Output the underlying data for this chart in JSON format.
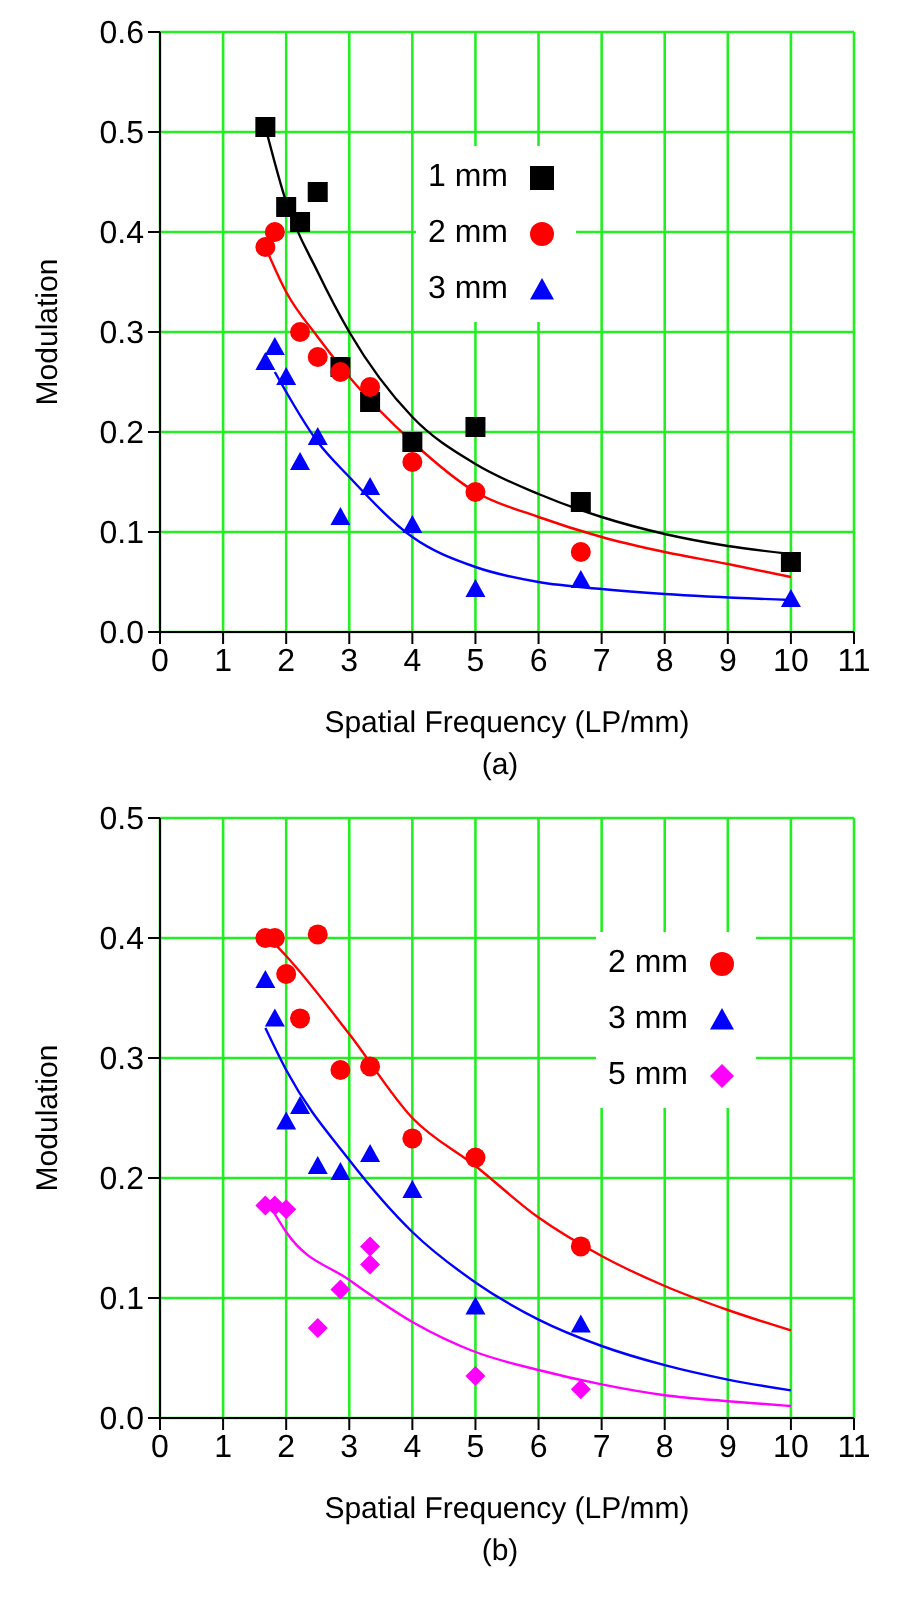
{
  "chart_data": [
    {
      "type": "scatter",
      "xlabel": "Spatial Frequency (LP/mm)",
      "ylabel": "Modulation",
      "annotations": [
        "(a)"
      ],
      "xlim": [
        0,
        11
      ],
      "xticks": [
        0,
        1,
        2,
        3,
        4,
        5,
        6,
        7,
        8,
        9,
        10,
        11
      ],
      "ylim": [
        0,
        0.6
      ],
      "yticks": [
        {
          "value": 0,
          "label": "0.0"
        },
        {
          "value": 0.1,
          "label": "0.1"
        },
        {
          "value": 0.2,
          "label": "0.2"
        },
        {
          "value": 0.3,
          "label": "0.3"
        },
        {
          "value": 0.4,
          "label": "0.4"
        },
        {
          "value": 0.5,
          "label": "0.5"
        },
        {
          "value": 0.6,
          "label": "0.6"
        }
      ],
      "grid": true,
      "legend": "top",
      "series": [
        {
          "name": "1 mm",
          "color": "#000000",
          "marker": "square",
          "x": [
            1.67,
            2,
            2.22,
            2.5,
            2.86,
            3.33,
            4,
            5,
            6.67,
            10
          ],
          "values": [
            0.505,
            0.425,
            0.41,
            0.44,
            0.265,
            0.23,
            0.19,
            0.205,
            0.13,
            0.07
          ]
        },
        {
          "name": "2 mm",
          "color": "#ff0000",
          "marker": "circle",
          "x": [
            1.67,
            1.82,
            2.22,
            2.5,
            2.86,
            3.33,
            4,
            5,
            6.67
          ],
          "values": [
            0.385,
            0.4,
            0.3,
            0.275,
            0.26,
            0.245,
            0.17,
            0.14,
            0.08
          ]
        },
        {
          "name": "3 mm",
          "color": "#0000ff",
          "marker": "triangle",
          "x": [
            1.67,
            1.82,
            2,
            2.22,
            2.5,
            2.86,
            3.33,
            4,
            5,
            6.67,
            10
          ],
          "values": [
            0.27,
            0.285,
            0.255,
            0.17,
            0.195,
            0.115,
            0.145,
            0.107,
            0.043,
            0.052,
            0.033
          ]
        },
        {
          "type": "line",
          "color": "#000000",
          "marker": "none",
          "x": [
            1.67,
            2,
            2.5,
            3,
            4,
            5,
            6,
            7,
            8,
            9,
            10
          ],
          "values": [
            0.505,
            0.43,
            0.36,
            0.3,
            0.215,
            0.168,
            0.138,
            0.115,
            0.098,
            0.086,
            0.078
          ]
        },
        {
          "type": "line",
          "color": "#ff0000",
          "marker": "none",
          "x": [
            1.67,
            2,
            2.5,
            3,
            4,
            5,
            6,
            7,
            8,
            9,
            10
          ],
          "values": [
            0.385,
            0.34,
            0.295,
            0.255,
            0.19,
            0.14,
            0.115,
            0.095,
            0.08,
            0.068,
            0.055
          ]
        },
        {
          "type": "line",
          "color": "#0000ff",
          "marker": "none",
          "x": [
            1.82,
            2.5,
            3,
            4,
            5,
            6,
            7,
            8,
            10
          ],
          "values": [
            0.26,
            0.19,
            0.155,
            0.095,
            0.065,
            0.05,
            0.043,
            0.038,
            0.032
          ]
        }
      ]
    },
    {
      "type": "scatter",
      "xlabel": "Spatial Frequency (LP/mm)",
      "ylabel": "Modulation",
      "annotations": [
        "(b)"
      ],
      "xlim": [
        0,
        11
      ],
      "xticks": [
        0,
        1,
        2,
        3,
        4,
        5,
        6,
        7,
        8,
        9,
        10,
        11
      ],
      "ylim": [
        0,
        0.5
      ],
      "yticks": [
        {
          "value": 0,
          "label": "0.0"
        },
        {
          "value": 0.1,
          "label": "0.1"
        },
        {
          "value": 0.2,
          "label": "0.2"
        },
        {
          "value": 0.3,
          "label": "0.3"
        },
        {
          "value": 0.4,
          "label": "0.4"
        },
        {
          "value": 0.5,
          "label": "0.5"
        }
      ],
      "grid": true,
      "legend": "top right",
      "series": [
        {
          "name": "2 mm",
          "color": "#ff0000",
          "marker": "circle",
          "x": [
            1.67,
            1.82,
            2,
            2.22,
            2.5,
            2.86,
            3.33,
            4,
            5,
            6.67
          ],
          "values": [
            0.4,
            0.4,
            0.37,
            0.333,
            0.403,
            0.29,
            0.293,
            0.233,
            0.217,
            0.143
          ]
        },
        {
          "name": "3 mm",
          "color": "#0000ff",
          "marker": "triangle",
          "x": [
            1.67,
            1.82,
            2,
            2.22,
            2.5,
            2.86,
            3.33,
            4,
            5,
            6.67
          ],
          "values": [
            0.365,
            0.333,
            0.247,
            0.26,
            0.21,
            0.205,
            0.22,
            0.19,
            0.093,
            0.078
          ]
        },
        {
          "name": "5 mm",
          "color": "#ff00ff",
          "marker": "diamond",
          "x": [
            1.67,
            1.82,
            2,
            2.5,
            2.86,
            3.33,
            3.33,
            5,
            6.67
          ],
          "values": [
            0.177,
            0.177,
            0.174,
            0.075,
            0.107,
            0.143,
            0.128,
            0.035,
            0.024
          ]
        },
        {
          "type": "line",
          "color": "#ff0000",
          "marker": "none",
          "x": [
            1.82,
            2,
            3,
            4,
            5,
            6,
            7,
            8,
            9,
            10
          ],
          "values": [
            0.395,
            0.385,
            0.32,
            0.25,
            0.21,
            0.167,
            0.135,
            0.11,
            0.09,
            0.073
          ]
        },
        {
          "type": "line",
          "color": "#0000ff",
          "marker": "none",
          "x": [
            1.67,
            2,
            3,
            4,
            5,
            6,
            7,
            8,
            9,
            10
          ],
          "values": [
            0.325,
            0.29,
            0.215,
            0.155,
            0.113,
            0.082,
            0.06,
            0.044,
            0.032,
            0.023
          ]
        },
        {
          "type": "line",
          "color": "#ff00ff",
          "marker": "none",
          "x": [
            1.82,
            2,
            3,
            4,
            5,
            6,
            7,
            8,
            9,
            10
          ],
          "values": [
            0.17,
            0.155,
            0.115,
            0.08,
            0.055,
            0.04,
            0.028,
            0.019,
            0.014,
            0.01
          ]
        }
      ]
    }
  ]
}
